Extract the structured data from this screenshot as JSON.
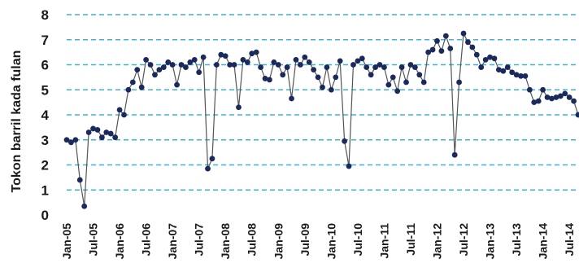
{
  "chart_data": {
    "type": "line",
    "title": "",
    "xlabel": "",
    "ylabel": "Tokon barril kada fulan",
    "ylim": [
      0,
      8
    ],
    "yticks": [
      "0",
      "1",
      "2",
      "3",
      "4",
      "5",
      "6",
      "7",
      "8"
    ],
    "grid": true,
    "x_tick_labels": [
      "Jan-05",
      "Jul-05",
      "Jan-06",
      "Jul-06",
      "Jan-07",
      "Jul-07",
      "Jan-08",
      "Jul-08",
      "Jan-09",
      "Jul-09",
      "Jan-10",
      "Jul-10",
      "Jan-11",
      "Jul-11",
      "Jan-12",
      "Jul-12",
      "Jan-13",
      "Jul-13",
      "Jan-14",
      "Jul-14"
    ],
    "series": [
      {
        "values": [
          3.0,
          2.9,
          3.0,
          1.4,
          0.35,
          3.3,
          3.45,
          3.4,
          3.1,
          3.3,
          3.25,
          3.1,
          4.2,
          4.0,
          5.0,
          5.3,
          5.8,
          5.1,
          6.2,
          6.0,
          5.6,
          5.8,
          5.9,
          6.1,
          6.0,
          5.2,
          6.0,
          5.9,
          6.1,
          6.2,
          5.7,
          6.3,
          1.85,
          2.25,
          6.0,
          6.4,
          6.35,
          6.0,
          6.0,
          4.3,
          6.2,
          6.1,
          6.45,
          6.5,
          5.9,
          5.45,
          5.4,
          6.1,
          6.0,
          5.6,
          5.9,
          4.65,
          6.2,
          6.0,
          6.3,
          6.1,
          5.8,
          5.5,
          5.1,
          5.9,
          5.0,
          5.5,
          6.15,
          2.95,
          1.95,
          6.0,
          6.15,
          6.25,
          5.9,
          5.6,
          5.9,
          6.0,
          5.9,
          5.2,
          5.5,
          4.95,
          5.9,
          5.3,
          6.0,
          5.9,
          5.6,
          5.3,
          6.5,
          6.6,
          6.95,
          6.55,
          7.15,
          6.65,
          2.4,
          5.3,
          7.25,
          6.9,
          6.7,
          6.4,
          5.9,
          6.2,
          6.3,
          6.25,
          5.8,
          5.75,
          5.9,
          5.7,
          5.6,
          5.55,
          5.55,
          5.0,
          4.5,
          4.55,
          5.0,
          4.7,
          4.65,
          4.7,
          4.75,
          4.85,
          4.7,
          4.55,
          4.0
        ]
      }
    ],
    "colors": {
      "line": "#555555",
      "marker": "#1b2a5c",
      "grid": "#3cb4d6"
    }
  }
}
